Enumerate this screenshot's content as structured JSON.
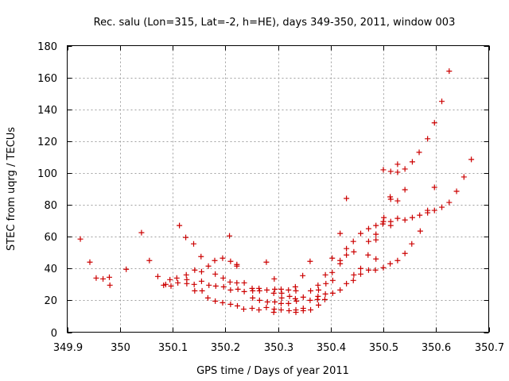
{
  "chart_data": {
    "type": "scatter",
    "title": "Rec. salu (Lon=315, Lat=-2, h=HE), days 349-350, 2011, window 003",
    "xlabel": "GPS time / Days of year 2011",
    "ylabel": "STEC from uqrg / TECUs",
    "xlim": [
      349.9,
      350.7
    ],
    "ylim": [
      0,
      180
    ],
    "xticks": [
      349.9,
      350,
      350.1,
      350.2,
      350.3,
      350.4,
      350.5,
      350.6,
      350.7
    ],
    "xtick_labels": [
      "349.9",
      "350",
      "350.1",
      "350.2",
      "350.3",
      "350.4",
      "350.5",
      "350.6",
      "350.7"
    ],
    "yticks": [
      0,
      20,
      40,
      60,
      80,
      100,
      120,
      140,
      160,
      180
    ],
    "ytick_labels": [
      "0",
      "20",
      "40",
      "60",
      "80",
      "100",
      "120",
      "140",
      "160",
      "180"
    ],
    "grid": true,
    "marker": "+",
    "color": "#cc0000",
    "points": [
      [
        349.925,
        58.5
      ],
      [
        349.943,
        44
      ],
      [
        349.955,
        34
      ],
      [
        349.968,
        33.5
      ],
      [
        349.98,
        34.5
      ],
      [
        349.981,
        29.5
      ],
      [
        350.012,
        39.5
      ],
      [
        350.041,
        62.5
      ],
      [
        350.056,
        45
      ],
      [
        350.072,
        35
      ],
      [
        350.083,
        29.5
      ],
      [
        350.087,
        30
      ],
      [
        350.095,
        33
      ],
      [
        350.097,
        29
      ],
      [
        350.108,
        34
      ],
      [
        350.11,
        31
      ],
      [
        350.113,
        67
      ],
      [
        350.125,
        59.5
      ],
      [
        350.126,
        36
      ],
      [
        350.127,
        33
      ],
      [
        350.127,
        30.5
      ],
      [
        350.14,
        55.5
      ],
      [
        350.142,
        39
      ],
      [
        350.141,
        30
      ],
      [
        350.142,
        26
      ],
      [
        350.154,
        47.5
      ],
      [
        350.155,
        38
      ],
      [
        350.155,
        32
      ],
      [
        350.156,
        26
      ],
      [
        350.168,
        41.5
      ],
      [
        350.169,
        29.5
      ],
      [
        350.167,
        21.5
      ],
      [
        350.18,
        45
      ],
      [
        350.181,
        36.5
      ],
      [
        350.182,
        29
      ],
      [
        350.181,
        19.5
      ],
      [
        350.195,
        46.5
      ],
      [
        350.196,
        34
      ],
      [
        350.197,
        28.5
      ],
      [
        350.195,
        18.5
      ],
      [
        350.208,
        60.5
      ],
      [
        350.21,
        44.5
      ],
      [
        350.209,
        31.5
      ],
      [
        350.21,
        26.5
      ],
      [
        350.21,
        17.5
      ],
      [
        350.222,
        42.5
      ],
      [
        350.222,
        41.5
      ],
      [
        350.222,
        31
      ],
      [
        350.224,
        27
      ],
      [
        350.223,
        16.5
      ],
      [
        350.236,
        31
      ],
      [
        350.236,
        25.5
      ],
      [
        350.235,
        14.5
      ],
      [
        350.251,
        27.5
      ],
      [
        350.252,
        26
      ],
      [
        350.252,
        21.5
      ],
      [
        350.251,
        15
      ],
      [
        350.264,
        27.5
      ],
      [
        350.265,
        26
      ],
      [
        350.265,
        20
      ],
      [
        350.264,
        14
      ],
      [
        350.278,
        44
      ],
      [
        350.279,
        26.5
      ],
      [
        350.28,
        19
      ],
      [
        350.278,
        15.5
      ],
      [
        350.293,
        33.5
      ],
      [
        350.294,
        27
      ],
      [
        350.292,
        24.5
      ],
      [
        350.294,
        19
      ],
      [
        350.293,
        14.5
      ],
      [
        350.292,
        12.5
      ],
      [
        350.306,
        27
      ],
      [
        350.307,
        24.5
      ],
      [
        350.307,
        21.5
      ],
      [
        350.306,
        18
      ],
      [
        350.306,
        14
      ],
      [
        350.32,
        26.5
      ],
      [
        350.322,
        22.5
      ],
      [
        350.32,
        18
      ],
      [
        350.321,
        13.5
      ],
      [
        350.333,
        28.5
      ],
      [
        350.334,
        26
      ],
      [
        350.333,
        21
      ],
      [
        350.335,
        19.5
      ],
      [
        350.334,
        14
      ],
      [
        350.334,
        12.5
      ],
      [
        350.347,
        35.5
      ],
      [
        350.348,
        22
      ],
      [
        350.348,
        15
      ],
      [
        350.348,
        13.5
      ],
      [
        350.361,
        44.5
      ],
      [
        350.362,
        26
      ],
      [
        350.361,
        20
      ],
      [
        350.362,
        14
      ],
      [
        350.376,
        29.5
      ],
      [
        350.377,
        26.5
      ],
      [
        350.376,
        22.5
      ],
      [
        350.375,
        20.5
      ],
      [
        350.377,
        17
      ],
      [
        350.39,
        36
      ],
      [
        350.391,
        30.5
      ],
      [
        350.39,
        24
      ],
      [
        350.389,
        20.5
      ],
      [
        350.403,
        46.5
      ],
      [
        350.403,
        37.5
      ],
      [
        350.404,
        32.5
      ],
      [
        350.404,
        24.5
      ],
      [
        350.418,
        62
      ],
      [
        350.418,
        45
      ],
      [
        350.418,
        43
      ],
      [
        350.418,
        26.5
      ],
      [
        350.43,
        84
      ],
      [
        350.43,
        52.5
      ],
      [
        350.43,
        48.5
      ],
      [
        350.43,
        30.5
      ],
      [
        350.443,
        57
      ],
      [
        350.444,
        50.5
      ],
      [
        350.444,
        36
      ],
      [
        350.443,
        32.5
      ],
      [
        350.457,
        62
      ],
      [
        350.457,
        40
      ],
      [
        350.457,
        36.5
      ],
      [
        350.472,
        65
      ],
      [
        350.472,
        57
      ],
      [
        350.471,
        48.5
      ],
      [
        350.472,
        39
      ],
      [
        350.486,
        67
      ],
      [
        350.486,
        61.5
      ],
      [
        350.486,
        58
      ],
      [
        350.486,
        46
      ],
      [
        350.485,
        39
      ],
      [
        350.5,
        102
      ],
      [
        350.501,
        72
      ],
      [
        350.5,
        69.5
      ],
      [
        350.499,
        68
      ],
      [
        350.5,
        40.5
      ],
      [
        350.514,
        101
      ],
      [
        350.513,
        85
      ],
      [
        350.514,
        83.5
      ],
      [
        350.514,
        69.5
      ],
      [
        350.514,
        67
      ],
      [
        350.513,
        43
      ],
      [
        350.527,
        105.5
      ],
      [
        350.527,
        100.5
      ],
      [
        350.527,
        82.5
      ],
      [
        350.527,
        71.5
      ],
      [
        350.527,
        45
      ],
      [
        350.541,
        102.5
      ],
      [
        350.541,
        89.5
      ],
      [
        350.541,
        70.5
      ],
      [
        350.541,
        49.5
      ],
      [
        350.555,
        107
      ],
      [
        350.555,
        72
      ],
      [
        350.554,
        55.5
      ],
      [
        350.568,
        113
      ],
      [
        350.569,
        73.5
      ],
      [
        350.57,
        63.5
      ],
      [
        350.584,
        121.5
      ],
      [
        350.584,
        76.5
      ],
      [
        350.584,
        75
      ],
      [
        350.597,
        131.5
      ],
      [
        350.597,
        91
      ],
      [
        350.597,
        76.5
      ],
      [
        350.611,
        145
      ],
      [
        350.611,
        78.5
      ],
      [
        350.625,
        164
      ],
      [
        350.625,
        81.5
      ],
      [
        350.639,
        88.5
      ],
      [
        350.653,
        97.5
      ],
      [
        350.667,
        108.5
      ]
    ]
  }
}
